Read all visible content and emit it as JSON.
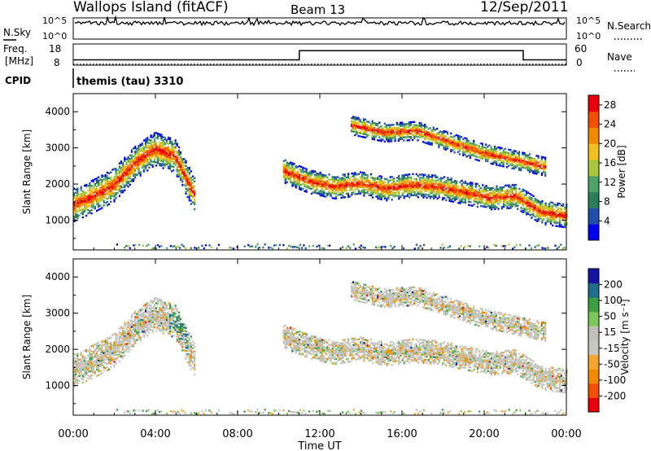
{
  "header": {
    "station": "Wallops Island (fitACF)",
    "beam": "Beam 13",
    "date": "12/Sep/2011",
    "cpid_text": "themis (tau) 3310"
  },
  "noise_panel": {
    "left_label": "N.Sky",
    "right_label": "N.Search",
    "left_ticks": [
      "10^5",
      "10^0"
    ],
    "right_ticks": [
      "10^5",
      "10^0"
    ]
  },
  "freq_panel": {
    "left_label_line1": "Freq.",
    "left_label_line2": "[MHz]",
    "right_label": "Nave",
    "left_ticks": [
      "18",
      "8"
    ],
    "right_ticks": [
      "60",
      "0"
    ]
  },
  "cpid_label": "CPID",
  "x_axis": {
    "label": "Time UT",
    "ticks": [
      "00:00",
      "04:00",
      "08:00",
      "12:00",
      "16:00",
      "20:00",
      "00:00"
    ]
  },
  "colors": {
    "power_scale": [
      "#0000ee",
      "#1f4faa",
      "#2e7d5a",
      "#4fa36a",
      "#a8c83c",
      "#f0c020",
      "#f08a00",
      "#f05000",
      "#e8000a"
    ],
    "velocity_scale": [
      "#e8000a",
      "#f05000",
      "#f08a00",
      "#f0a830",
      "#c8c8c0",
      "#c0c0bc",
      "#7ec85a",
      "#3c9e44",
      "#1e6e8c",
      "#1414a0"
    ],
    "ground_scatter": "#c8c8c0"
  },
  "chart_data": [
    {
      "type": "heatmap",
      "name": "power_panel",
      "xlabel": "Time UT",
      "ylabel": "Slant Range [km]",
      "xlim_hours": [
        0,
        24
      ],
      "ylim": [
        180,
        4500
      ],
      "y_ticks": [
        "1000",
        "2000",
        "3000",
        "4000"
      ],
      "colorbar_label": "Power [dB]",
      "colorbar_ticks": [
        "4",
        "8",
        "12",
        "16",
        "20",
        "24",
        "28"
      ],
      "colorbar_range": [
        0,
        30
      ],
      "bands": [
        {
          "t": [
            0.0,
            5.9
          ],
          "center": [
            1450,
            1700,
            2000,
            2600,
            3000,
            2800,
            1700
          ],
          "width": 900
        },
        {
          "t": [
            10.2,
            24.0
          ],
          "center": [
            2400,
            2100,
            1950,
            2050,
            1900,
            2000,
            1950,
            1800,
            1650,
            1700,
            1250,
            1150
          ],
          "width": 650
        },
        {
          "t": [
            13.5,
            23.0
          ],
          "center": [
            3650,
            3450,
            3500,
            3200,
            2900,
            2700,
            2500
          ],
          "width": 500
        }
      ],
      "near_range_scatter_km": 300
    },
    {
      "type": "heatmap",
      "name": "velocity_panel",
      "xlabel": "Time UT",
      "ylabel": "Slant Range [km]",
      "xlim_hours": [
        0,
        24
      ],
      "ylim": [
        180,
        4500
      ],
      "y_ticks": [
        "1000",
        "2000",
        "3000",
        "4000"
      ],
      "colorbar_label": "Velocity [m s⁻¹]",
      "colorbar_ticks": [
        "-200",
        "-100",
        "-50",
        "-15",
        "15",
        "50",
        "100",
        "200"
      ],
      "colorbar_range": [
        -250,
        250
      ]
    },
    {
      "type": "line",
      "name": "noise_series",
      "note_levels": {
        "sky_frac_from_top": 0.25,
        "search_frac_from_top": 0.35
      }
    },
    {
      "type": "line",
      "name": "frequency_series",
      "segments": [
        {
          "t": [
            0.0,
            11.0
          ],
          "freq_mhz": 10.5
        },
        {
          "t": [
            11.0,
            21.9
          ],
          "freq_mhz": 15.6
        },
        {
          "t": [
            21.9,
            24.0
          ],
          "freq_mhz": 10.5
        }
      ],
      "nave_dotted": {
        "t": [
          0,
          24
        ],
        "value": 3
      }
    }
  ]
}
